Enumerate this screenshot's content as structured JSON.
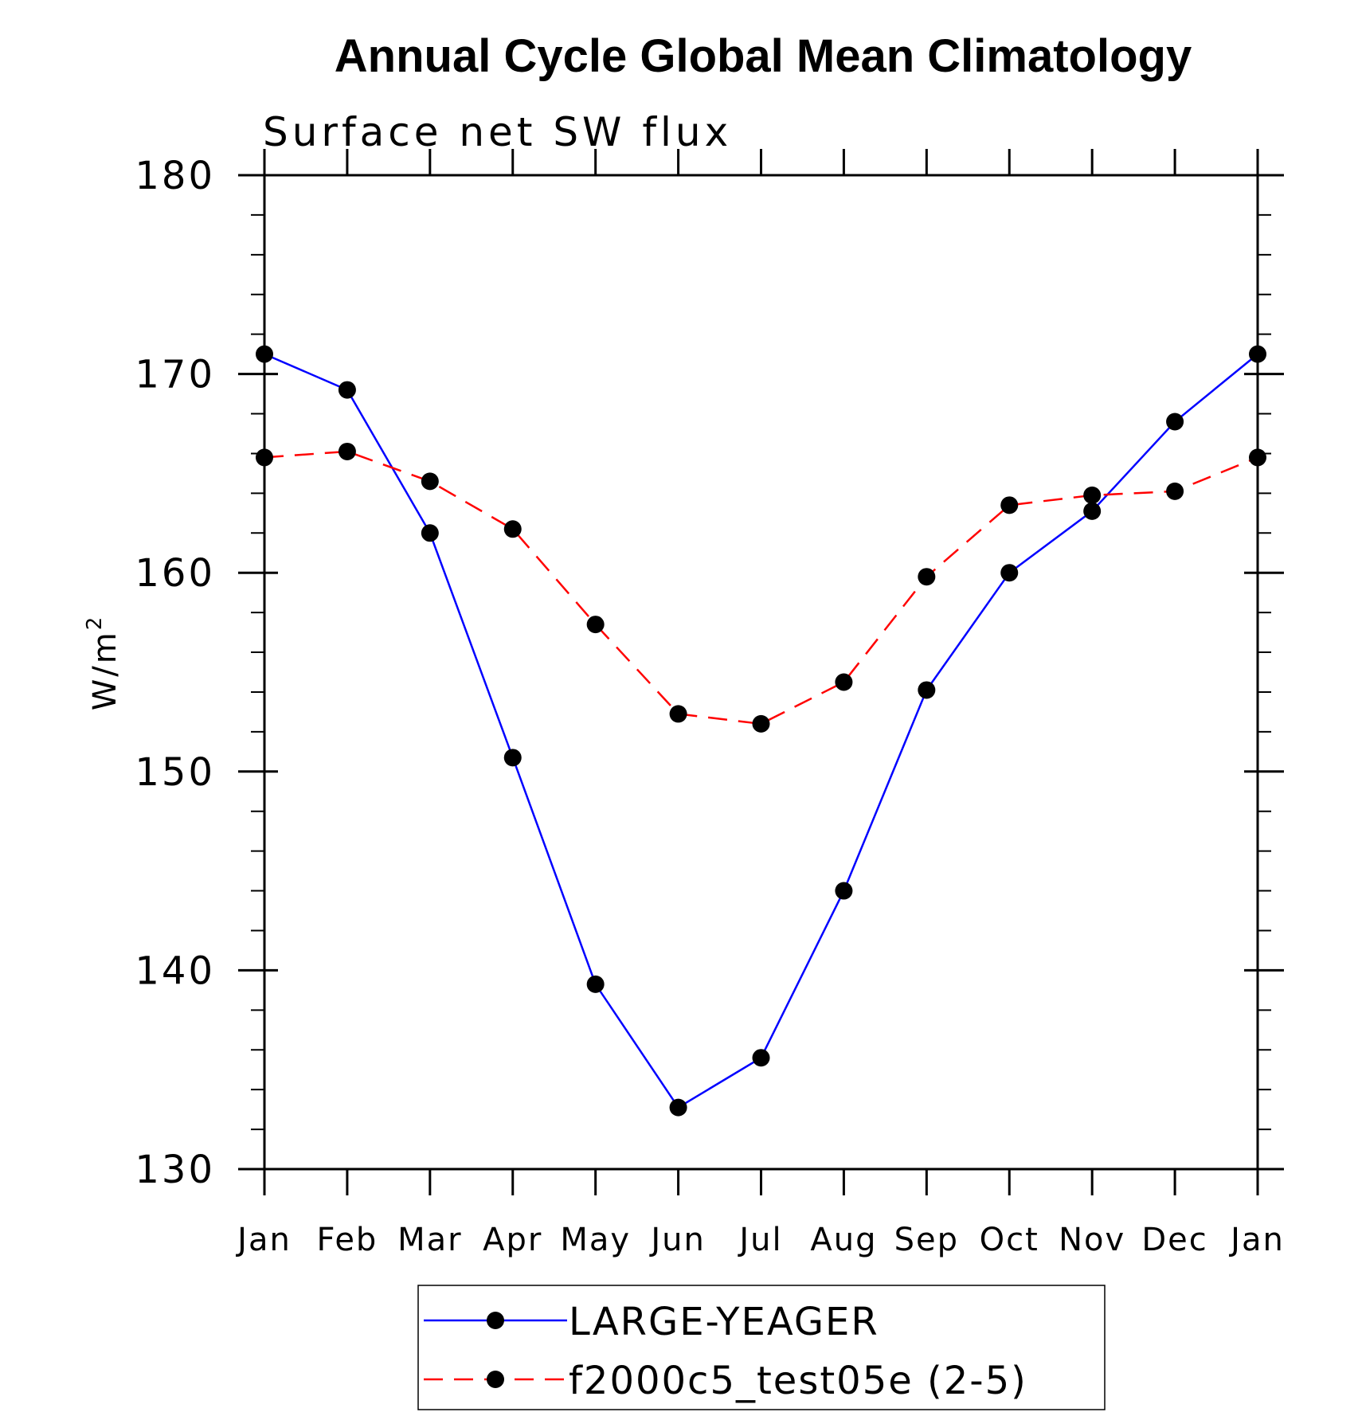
{
  "chart_data": {
    "type": "line",
    "title": "Annual Cycle Global Mean Climatology",
    "subtitle": "Surface net SW flux",
    "ylabel": "W/m",
    "ylabel_superscript": "2",
    "xlabel": "",
    "categories": [
      "Jan",
      "Feb",
      "Mar",
      "Apr",
      "May",
      "Jun",
      "Jul",
      "Aug",
      "Sep",
      "Oct",
      "Nov",
      "Dec",
      "Jan"
    ],
    "ylim": [
      130,
      180
    ],
    "yticks": [
      130,
      140,
      150,
      160,
      170,
      180
    ],
    "ytick_labels": [
      "130",
      "140",
      "150",
      "160",
      "170",
      "180"
    ],
    "y_minor_step": 2,
    "grid": false,
    "legend_position": "bottom-center",
    "series": [
      {
        "name": "LARGE-YEAGER",
        "color": "#0000ff",
        "style": "solid",
        "values": [
          171.0,
          169.2,
          162.0,
          150.7,
          139.3,
          133.1,
          135.6,
          144.0,
          154.1,
          160.0,
          163.1,
          167.6,
          171.0
        ]
      },
      {
        "name": "f2000c5_test05e (2-5)",
        "color": "#ff0000",
        "style": "dashed",
        "values": [
          165.8,
          166.1,
          164.6,
          162.2,
          157.4,
          152.9,
          152.4,
          154.5,
          159.8,
          163.4,
          163.9,
          164.1,
          165.8
        ]
      }
    ]
  }
}
